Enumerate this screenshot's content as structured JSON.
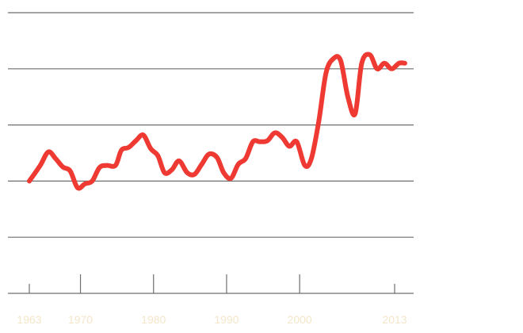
{
  "chart_data": {
    "type": "line",
    "title": "",
    "xlabel": "",
    "ylabel": "",
    "xlim": [
      1963,
      2015
    ],
    "ylim": [
      0,
      5
    ],
    "grid": true,
    "x_ticks": [
      1963,
      1970,
      1980,
      1990,
      2000,
      2013
    ],
    "x_tick_labels": [
      "1963",
      "1970",
      "1980",
      "1990",
      "2000",
      "2013"
    ],
    "series": [
      {
        "color": "#ee3a33",
        "x": [
          1963,
          1964.5,
          1965.6,
          1966.6,
          1967.6,
          1968.6,
          1969.6,
          1970.6,
          1971.6,
          1972.6,
          1973.6,
          1974.8,
          1975.6,
          1976.6,
          1977.6,
          1978.6,
          1979.6,
          1980.6,
          1981.5,
          1982.5,
          1983.5,
          1984.6,
          1985.6,
          1986.6,
          1987.6,
          1988.7,
          1989.6,
          1990.6,
          1991.6,
          1992.6,
          1993.6,
          1994.6,
          1995.6,
          1996.6,
          1997.6,
          1998.6,
          1999.6,
          2000.7,
          2001.6,
          2002.6,
          2003.6,
          2004.6,
          2005.6,
          2006.6,
          2007.6,
          2008.5,
          2009.6,
          2010.6,
          2011.6,
          2012.6,
          2013.6,
          2014.4
        ],
        "values": [
          2.0,
          2.28,
          2.52,
          2.4,
          2.25,
          2.18,
          1.88,
          1.95,
          2.0,
          2.24,
          2.28,
          2.28,
          2.55,
          2.6,
          2.72,
          2.82,
          2.58,
          2.45,
          2.15,
          2.2,
          2.36,
          2.15,
          2.12,
          2.3,
          2.48,
          2.42,
          2.15,
          2.05,
          2.3,
          2.4,
          2.7,
          2.7,
          2.72,
          2.86,
          2.78,
          2.62,
          2.7,
          2.28,
          2.4,
          3.05,
          3.92,
          4.18,
          4.15,
          3.5,
          3.2,
          4.1,
          4.25,
          4.0,
          4.1,
          4.0,
          4.1,
          4.1
        ]
      }
    ]
  }
}
